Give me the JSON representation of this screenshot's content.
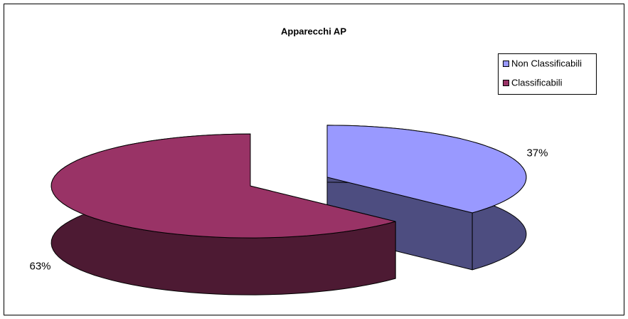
{
  "chart_data": {
    "type": "pie",
    "title": "Apparecchi AP",
    "categories": [
      "Non Classificabili",
      "Classificabili"
    ],
    "values": [
      37,
      63
    ],
    "value_labels": [
      "37%",
      "63%"
    ],
    "colors": [
      "#9999ff",
      "#993366"
    ],
    "legend": "upper right"
  }
}
